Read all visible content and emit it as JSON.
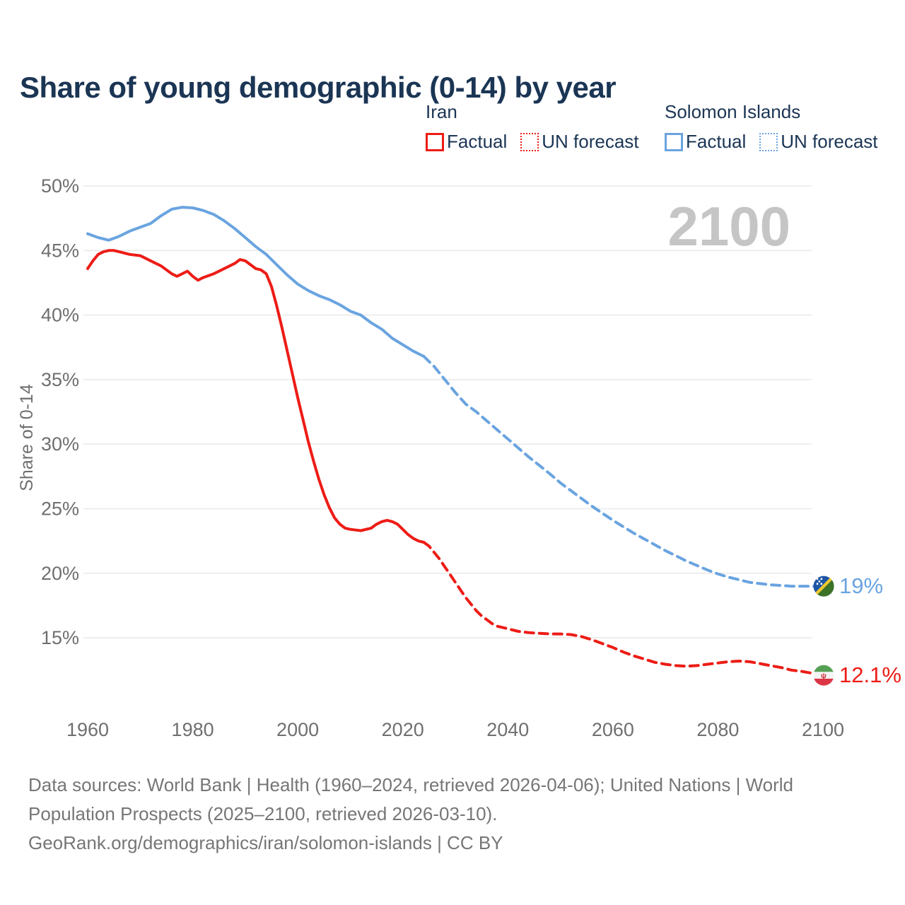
{
  "chart_data": {
    "type": "line",
    "title": "Share of young demographic (0-14) by year",
    "ylabel": "Share of 0-14",
    "watermark": "2100",
    "x_ticks": [
      1960,
      1980,
      2000,
      2020,
      2040,
      2060,
      2080,
      2100
    ],
    "y_ticks": [
      50,
      45,
      40,
      35,
      30,
      25,
      20,
      15
    ],
    "y_tick_suffix": "%",
    "xlim": [
      1960,
      2100
    ],
    "ylim": [
      15,
      50
    ],
    "grid": "horizontal",
    "legend_position": "top-right",
    "legend": {
      "groups": [
        {
          "country": "Iran",
          "color": "#ed1c16",
          "items": [
            {
              "label": "Factual",
              "style": "solid"
            },
            {
              "label": "UN forecast",
              "style": "dotted"
            }
          ]
        },
        {
          "country": "Solomon Islands",
          "color": "#6aa4e0",
          "items": [
            {
              "label": "Factual",
              "style": "solid"
            },
            {
              "label": "UN forecast",
              "style": "dotted"
            }
          ]
        }
      ]
    },
    "series": [
      {
        "name": "Iran Factual",
        "color": "#ed1c16",
        "dash": false,
        "points": [
          [
            1960,
            43.6
          ],
          [
            1961,
            44.2
          ],
          [
            1962,
            44.7
          ],
          [
            1963,
            44.9
          ],
          [
            1964,
            45.0
          ],
          [
            1965,
            45.0
          ],
          [
            1966,
            44.9
          ],
          [
            1968,
            44.7
          ],
          [
            1970,
            44.6
          ],
          [
            1972,
            44.2
          ],
          [
            1974,
            43.8
          ],
          [
            1976,
            43.2
          ],
          [
            1977,
            43.0
          ],
          [
            1978,
            43.2
          ],
          [
            1979,
            43.4
          ],
          [
            1980,
            43.0
          ],
          [
            1981,
            42.7
          ],
          [
            1982,
            42.9
          ],
          [
            1984,
            43.2
          ],
          [
            1986,
            43.6
          ],
          [
            1988,
            44.0
          ],
          [
            1989,
            44.3
          ],
          [
            1990,
            44.2
          ],
          [
            1991,
            43.9
          ],
          [
            1992,
            43.6
          ],
          [
            1993,
            43.5
          ],
          [
            1994,
            43.2
          ],
          [
            1995,
            42.2
          ],
          [
            1996,
            40.7
          ],
          [
            1997,
            39.0
          ],
          [
            1998,
            37.2
          ],
          [
            1999,
            35.4
          ],
          [
            2000,
            33.6
          ],
          [
            2001,
            31.9
          ],
          [
            2002,
            30.2
          ],
          [
            2003,
            28.7
          ],
          [
            2004,
            27.3
          ],
          [
            2005,
            26.1
          ],
          [
            2006,
            25.1
          ],
          [
            2007,
            24.3
          ],
          [
            2008,
            23.8
          ],
          [
            2009,
            23.5
          ],
          [
            2010,
            23.4
          ],
          [
            2012,
            23.3
          ],
          [
            2014,
            23.5
          ],
          [
            2015,
            23.8
          ],
          [
            2016,
            24.0
          ],
          [
            2017,
            24.1
          ],
          [
            2018,
            24.0
          ],
          [
            2019,
            23.8
          ],
          [
            2020,
            23.4
          ],
          [
            2021,
            23.0
          ],
          [
            2022,
            22.7
          ],
          [
            2023,
            22.5
          ],
          [
            2024,
            22.4
          ]
        ]
      },
      {
        "name": "Iran UN forecast",
        "color": "#ed1c16",
        "dash": true,
        "points": [
          [
            2024,
            22.4
          ],
          [
            2025,
            22.1
          ],
          [
            2026,
            21.6
          ],
          [
            2027,
            21.1
          ],
          [
            2028,
            20.5
          ],
          [
            2029,
            19.9
          ],
          [
            2030,
            19.3
          ],
          [
            2031,
            18.7
          ],
          [
            2032,
            18.1
          ],
          [
            2033,
            17.6
          ],
          [
            2034,
            17.1
          ],
          [
            2035,
            16.7
          ],
          [
            2036,
            16.4
          ],
          [
            2037,
            16.1
          ],
          [
            2038,
            15.9
          ],
          [
            2040,
            15.7
          ],
          [
            2042,
            15.5
          ],
          [
            2044,
            15.4
          ],
          [
            2046,
            15.35
          ],
          [
            2048,
            15.3
          ],
          [
            2050,
            15.3
          ],
          [
            2052,
            15.25
          ],
          [
            2054,
            15.1
          ],
          [
            2056,
            14.85
          ],
          [
            2058,
            14.55
          ],
          [
            2060,
            14.25
          ],
          [
            2062,
            13.9
          ],
          [
            2064,
            13.6
          ],
          [
            2066,
            13.35
          ],
          [
            2068,
            13.1
          ],
          [
            2070,
            12.95
          ],
          [
            2072,
            12.85
          ],
          [
            2074,
            12.8
          ],
          [
            2076,
            12.85
          ],
          [
            2078,
            12.95
          ],
          [
            2080,
            13.05
          ],
          [
            2082,
            13.15
          ],
          [
            2084,
            13.2
          ],
          [
            2086,
            13.15
          ],
          [
            2088,
            13.0
          ],
          [
            2090,
            12.85
          ],
          [
            2092,
            12.7
          ],
          [
            2094,
            12.5
          ],
          [
            2096,
            12.4
          ],
          [
            2098,
            12.25
          ],
          [
            2100,
            12.1
          ]
        ]
      },
      {
        "name": "Solomon Islands Factual",
        "color": "#6aa4e0",
        "dash": false,
        "points": [
          [
            1960,
            46.3
          ],
          [
            1962,
            46.0
          ],
          [
            1964,
            45.8
          ],
          [
            1966,
            46.1
          ],
          [
            1968,
            46.5
          ],
          [
            1970,
            46.8
          ],
          [
            1972,
            47.1
          ],
          [
            1974,
            47.7
          ],
          [
            1976,
            48.2
          ],
          [
            1978,
            48.35
          ],
          [
            1980,
            48.3
          ],
          [
            1982,
            48.1
          ],
          [
            1984,
            47.8
          ],
          [
            1986,
            47.3
          ],
          [
            1988,
            46.7
          ],
          [
            1990,
            46.0
          ],
          [
            1992,
            45.3
          ],
          [
            1994,
            44.7
          ],
          [
            1996,
            43.9
          ],
          [
            1998,
            43.1
          ],
          [
            2000,
            42.4
          ],
          [
            2002,
            41.9
          ],
          [
            2004,
            41.5
          ],
          [
            2006,
            41.2
          ],
          [
            2008,
            40.8
          ],
          [
            2010,
            40.3
          ],
          [
            2012,
            40.0
          ],
          [
            2014,
            39.4
          ],
          [
            2016,
            38.9
          ],
          [
            2018,
            38.2
          ],
          [
            2020,
            37.7
          ],
          [
            2022,
            37.2
          ],
          [
            2024,
            36.8
          ]
        ]
      },
      {
        "name": "Solomon Islands UN forecast",
        "color": "#6aa4e0",
        "dash": true,
        "points": [
          [
            2024,
            36.8
          ],
          [
            2026,
            36.0
          ],
          [
            2028,
            35.0
          ],
          [
            2030,
            34.0
          ],
          [
            2032,
            33.1
          ],
          [
            2034,
            32.5
          ],
          [
            2036,
            31.8
          ],
          [
            2038,
            31.1
          ],
          [
            2040,
            30.4
          ],
          [
            2042,
            29.7
          ],
          [
            2044,
            29.0
          ],
          [
            2046,
            28.35
          ],
          [
            2048,
            27.7
          ],
          [
            2050,
            27.0
          ],
          [
            2052,
            26.4
          ],
          [
            2054,
            25.8
          ],
          [
            2056,
            25.2
          ],
          [
            2058,
            24.65
          ],
          [
            2060,
            24.1
          ],
          [
            2062,
            23.6
          ],
          [
            2064,
            23.1
          ],
          [
            2066,
            22.65
          ],
          [
            2068,
            22.2
          ],
          [
            2070,
            21.75
          ],
          [
            2072,
            21.35
          ],
          [
            2074,
            20.95
          ],
          [
            2076,
            20.6
          ],
          [
            2078,
            20.25
          ],
          [
            2080,
            19.95
          ],
          [
            2082,
            19.7
          ],
          [
            2084,
            19.5
          ],
          [
            2086,
            19.3
          ],
          [
            2088,
            19.2
          ],
          [
            2090,
            19.1
          ],
          [
            2092,
            19.05
          ],
          [
            2094,
            19.0
          ],
          [
            2096,
            19.0
          ],
          [
            2098,
            19.0
          ],
          [
            2100,
            19.0
          ]
        ]
      }
    ],
    "end_labels": [
      {
        "text": "19%",
        "color": "#6aa4e0",
        "flag": "solomon-islands",
        "year": 2100,
        "value": 19
      },
      {
        "text": "12.1%",
        "color": "#ed1c16",
        "flag": "iran",
        "year": 2100,
        "value": 12.1
      }
    ]
  },
  "footer": {
    "lines": [
      "Data sources: World Bank | Health (1960–2024, retrieved 2026-04-06); United Nations | World",
      "Population Prospects (2025–2100, retrieved 2026-03-10).",
      "GeoRank.org/demographics/iran/solomon-islands | CC BY"
    ]
  }
}
